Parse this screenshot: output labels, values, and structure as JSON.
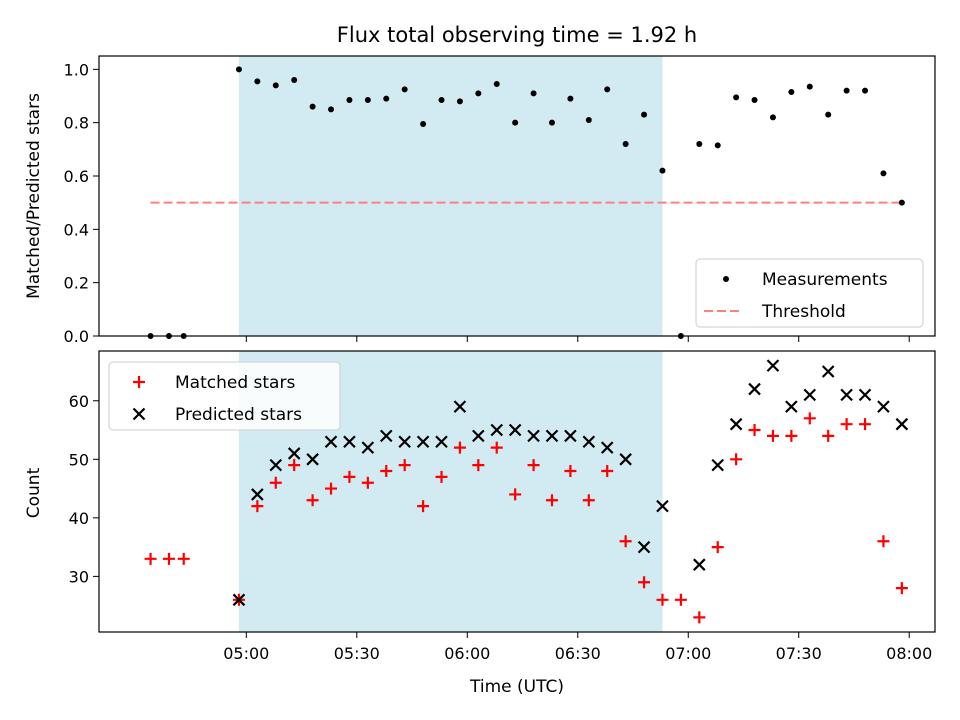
{
  "chart_data": [
    {
      "type": "scatter",
      "title": "Flux total observing time = 1.92 h",
      "xlabel": "",
      "ylabel": "Matched/Predicted stars",
      "ylim": [
        0,
        1.05
      ],
      "yticks": [
        "0.0",
        "0.2",
        "0.4",
        "0.6",
        "0.8",
        "1.0"
      ],
      "shaded_region": {
        "x_start": "04:58",
        "x_end": "06:53",
        "color": "#add8e6"
      },
      "threshold": {
        "name": "Threshold",
        "y": 0.5,
        "x_start": "04:34",
        "x_end": "07:58",
        "color": "#ff7f7f"
      },
      "legend_position": "lower-right",
      "series": [
        {
          "name": "Measurements",
          "marker": "dot",
          "color": "#000000",
          "points": [
            [
              "04:34",
              0.0
            ],
            [
              "04:39",
              0.0
            ],
            [
              "04:43",
              0.0
            ],
            [
              "04:58",
              1.0
            ],
            [
              "05:03",
              0.955
            ],
            [
              "05:08",
              0.94
            ],
            [
              "05:13",
              0.96
            ],
            [
              "05:18",
              0.86
            ],
            [
              "05:23",
              0.85
            ],
            [
              "05:28",
              0.885
            ],
            [
              "05:33",
              0.885
            ],
            [
              "05:38",
              0.89
            ],
            [
              "05:43",
              0.925
            ],
            [
              "05:48",
              0.795
            ],
            [
              "05:53",
              0.885
            ],
            [
              "05:58",
              0.88
            ],
            [
              "06:03",
              0.91
            ],
            [
              "06:08",
              0.945
            ],
            [
              "06:13",
              0.8
            ],
            [
              "06:18",
              0.91
            ],
            [
              "06:23",
              0.8
            ],
            [
              "06:28",
              0.89
            ],
            [
              "06:33",
              0.81
            ],
            [
              "06:38",
              0.925
            ],
            [
              "06:43",
              0.72
            ],
            [
              "06:48",
              0.83
            ],
            [
              "06:53",
              0.62
            ],
            [
              "06:58",
              0.0
            ],
            [
              "07:03",
              0.72
            ],
            [
              "07:08",
              0.715
            ],
            [
              "07:13",
              0.895
            ],
            [
              "07:18",
              0.885
            ],
            [
              "07:23",
              0.82
            ],
            [
              "07:28",
              0.915
            ],
            [
              "07:33",
              0.935
            ],
            [
              "07:38",
              0.83
            ],
            [
              "07:43",
              0.92
            ],
            [
              "07:48",
              0.92
            ],
            [
              "07:53",
              0.61
            ],
            [
              "07:58",
              0.5
            ]
          ]
        }
      ]
    },
    {
      "type": "scatter",
      "title": "",
      "xlabel": "Time (UTC)",
      "ylabel": "Count",
      "ylim": [
        20.5,
        68.5
      ],
      "xlim": [
        "04:20",
        "08:07"
      ],
      "xticks": [
        "05:00",
        "05:30",
        "06:00",
        "06:30",
        "07:00",
        "07:30",
        "08:00"
      ],
      "yticks": [
        "30",
        "40",
        "50",
        "60"
      ],
      "shaded_region": {
        "x_start": "04:58",
        "x_end": "06:53",
        "color": "#add8e6"
      },
      "legend_position": "upper-left",
      "series": [
        {
          "name": "Matched stars",
          "marker": "plus",
          "color": "#ff0000",
          "points": [
            [
              "04:34",
              33
            ],
            [
              "04:39",
              33
            ],
            [
              "04:43",
              33
            ],
            [
              "04:58",
              26
            ],
            [
              "05:03",
              42
            ],
            [
              "05:08",
              46
            ],
            [
              "05:13",
              49
            ],
            [
              "05:18",
              43
            ],
            [
              "05:23",
              45
            ],
            [
              "05:28",
              47
            ],
            [
              "05:33",
              46
            ],
            [
              "05:38",
              48
            ],
            [
              "05:43",
              49
            ],
            [
              "05:48",
              42
            ],
            [
              "05:53",
              47
            ],
            [
              "05:58",
              52
            ],
            [
              "06:03",
              49
            ],
            [
              "06:08",
              52
            ],
            [
              "06:13",
              44
            ],
            [
              "06:18",
              49
            ],
            [
              "06:23",
              43
            ],
            [
              "06:28",
              48
            ],
            [
              "06:33",
              43
            ],
            [
              "06:38",
              48
            ],
            [
              "06:43",
              36
            ],
            [
              "06:48",
              29
            ],
            [
              "06:53",
              26
            ],
            [
              "06:58",
              26
            ],
            [
              "07:03",
              23
            ],
            [
              "07:08",
              35
            ],
            [
              "07:13",
              50
            ],
            [
              "07:18",
              55
            ],
            [
              "07:23",
              54
            ],
            [
              "07:28",
              54
            ],
            [
              "07:33",
              57
            ],
            [
              "07:38",
              54
            ],
            [
              "07:43",
              56
            ],
            [
              "07:48",
              56
            ],
            [
              "07:53",
              36
            ],
            [
              "07:58",
              28
            ]
          ]
        },
        {
          "name": "Predicted stars",
          "marker": "x",
          "color": "#000000",
          "points": [
            [
              "04:58",
              26
            ],
            [
              "05:03",
              44
            ],
            [
              "05:08",
              49
            ],
            [
              "05:13",
              51
            ],
            [
              "05:18",
              50
            ],
            [
              "05:23",
              53
            ],
            [
              "05:28",
              53
            ],
            [
              "05:33",
              52
            ],
            [
              "05:38",
              54
            ],
            [
              "05:43",
              53
            ],
            [
              "05:48",
              53
            ],
            [
              "05:53",
              53
            ],
            [
              "05:58",
              59
            ],
            [
              "06:03",
              54
            ],
            [
              "06:08",
              55
            ],
            [
              "06:13",
              55
            ],
            [
              "06:18",
              54
            ],
            [
              "06:23",
              54
            ],
            [
              "06:28",
              54
            ],
            [
              "06:33",
              53
            ],
            [
              "06:38",
              52
            ],
            [
              "06:43",
              50
            ],
            [
              "06:48",
              35
            ],
            [
              "06:53",
              42
            ],
            [
              "07:03",
              32
            ],
            [
              "07:08",
              49
            ],
            [
              "07:13",
              56
            ],
            [
              "07:18",
              62
            ],
            [
              "07:23",
              66
            ],
            [
              "07:28",
              59
            ],
            [
              "07:33",
              61
            ],
            [
              "07:38",
              65
            ],
            [
              "07:43",
              61
            ],
            [
              "07:48",
              61
            ],
            [
              "07:53",
              59
            ],
            [
              "07:58",
              56
            ]
          ]
        }
      ]
    }
  ]
}
